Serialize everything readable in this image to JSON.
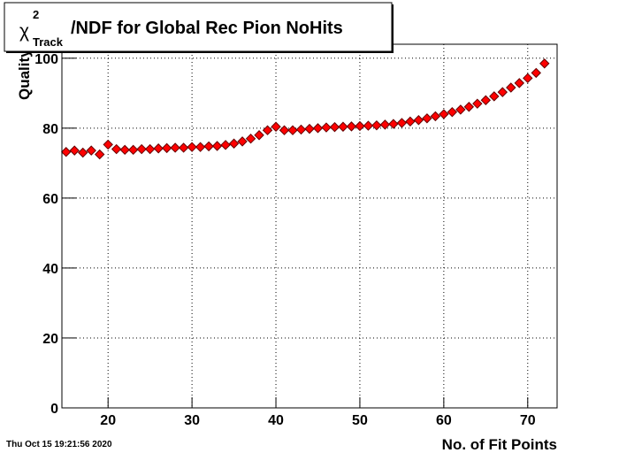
{
  "chart_data": {
    "type": "scatter",
    "title": {
      "symbol": "χ",
      "superscript": "2",
      "subscript": "Track",
      "text": "/NDF for Global Rec Pion NoHits"
    },
    "x_label": "No. of Fit Points",
    "y_label": "Quality",
    "timestamp": "Thu Oct 15 19:21:56 2020",
    "xlim": [
      14.5,
      73.5
    ],
    "xticks": [
      20,
      30,
      40,
      50,
      60,
      70
    ],
    "ylim": [
      0,
      104
    ],
    "yticks": [
      0,
      20,
      40,
      60,
      80,
      100
    ],
    "grid": true,
    "color": "#ff0000",
    "x": [
      15,
      16,
      17,
      18,
      19,
      20,
      21,
      22,
      23,
      24,
      25,
      26,
      27,
      28,
      29,
      30,
      31,
      32,
      33,
      34,
      35,
      36,
      37,
      38,
      39,
      40,
      41,
      42,
      43,
      44,
      45,
      46,
      47,
      48,
      49,
      50,
      51,
      52,
      53,
      54,
      55,
      56,
      57,
      58,
      59,
      60,
      61,
      62,
      63,
      64,
      65,
      66,
      67,
      68,
      69,
      70,
      71,
      72
    ],
    "values": [
      73.2,
      73.6,
      73.0,
      73.6,
      72.5,
      75.3,
      74.0,
      73.8,
      73.8,
      74.0,
      74.0,
      74.2,
      74.3,
      74.4,
      74.4,
      74.6,
      74.6,
      74.8,
      74.9,
      75.2,
      75.6,
      76.2,
      77.0,
      78.0,
      79.4,
      80.4,
      79.4,
      79.4,
      79.6,
      79.8,
      80.0,
      80.2,
      80.3,
      80.4,
      80.5,
      80.6,
      80.7,
      80.8,
      81.0,
      81.2,
      81.5,
      81.9,
      82.3,
      82.8,
      83.4,
      84.0,
      84.6,
      85.3,
      86.1,
      87.0,
      88.0,
      89.1,
      90.3,
      91.6,
      92.9,
      94.3,
      95.8,
      98.5
    ]
  }
}
